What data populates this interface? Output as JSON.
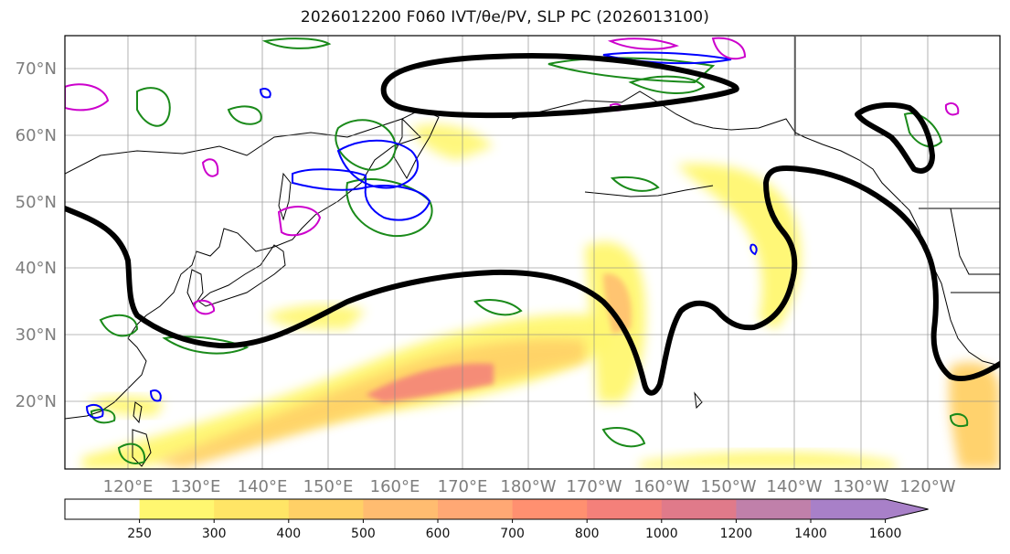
{
  "title": "2026012200 F060 IVT/θe/PV, SLP PC (2026013100)",
  "map": {
    "lat_labels": [
      "70°N",
      "60°N",
      "50°N",
      "40°N",
      "30°N",
      "20°N"
    ],
    "lon_labels": [
      "120°E",
      "130°E",
      "140°E",
      "150°E",
      "160°E",
      "170°E",
      "180°W",
      "170°W",
      "160°W",
      "150°W",
      "140°W",
      "130°W",
      "120°W"
    ],
    "colors": {
      "ocean": "#ffffff",
      "coast": "#000000",
      "slp_contour": "#000000",
      "theta_e": "#1a8a1a",
      "pv_blue": "#0000ff",
      "pv_magenta": "#cc00cc",
      "grid": "#888888"
    }
  },
  "colorbar": {
    "levels": [
      "250",
      "300",
      "400",
      "500",
      "600",
      "700",
      "800",
      "1000",
      "1200",
      "1400",
      "1600"
    ],
    "colors": [
      "#ffffff",
      "#fff770",
      "#ffe566",
      "#ffd066",
      "#ffbc70",
      "#ffa874",
      "#ff9070",
      "#f4807a",
      "#e07a8a",
      "#c080aa",
      "#a880c8"
    ]
  }
}
